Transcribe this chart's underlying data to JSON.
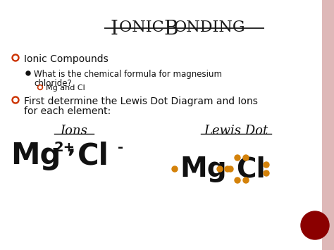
{
  "title_I": "I",
  "title_onic": "ONIC ",
  "title_B": "B",
  "title_onding": "ONDING",
  "bg_color": "#ffffff",
  "border_color": "#d4a0a0",
  "bullet_color": "#cc3300",
  "orange_dot_color": "#d4820a",
  "red_circle_color": "#8b0000",
  "bullet1": "Ionic Compounds",
  "sub1a": "What is the chemical formula for magnesium",
  "sub1b": "chloride?",
  "sub2": "Mg and Cl",
  "bullet2a": "First determine the Lewis Dot Diagram and Ions",
  "bullet2b": "for each element:",
  "ions_label": "Ions",
  "lewis_label": "Lewis Dot"
}
